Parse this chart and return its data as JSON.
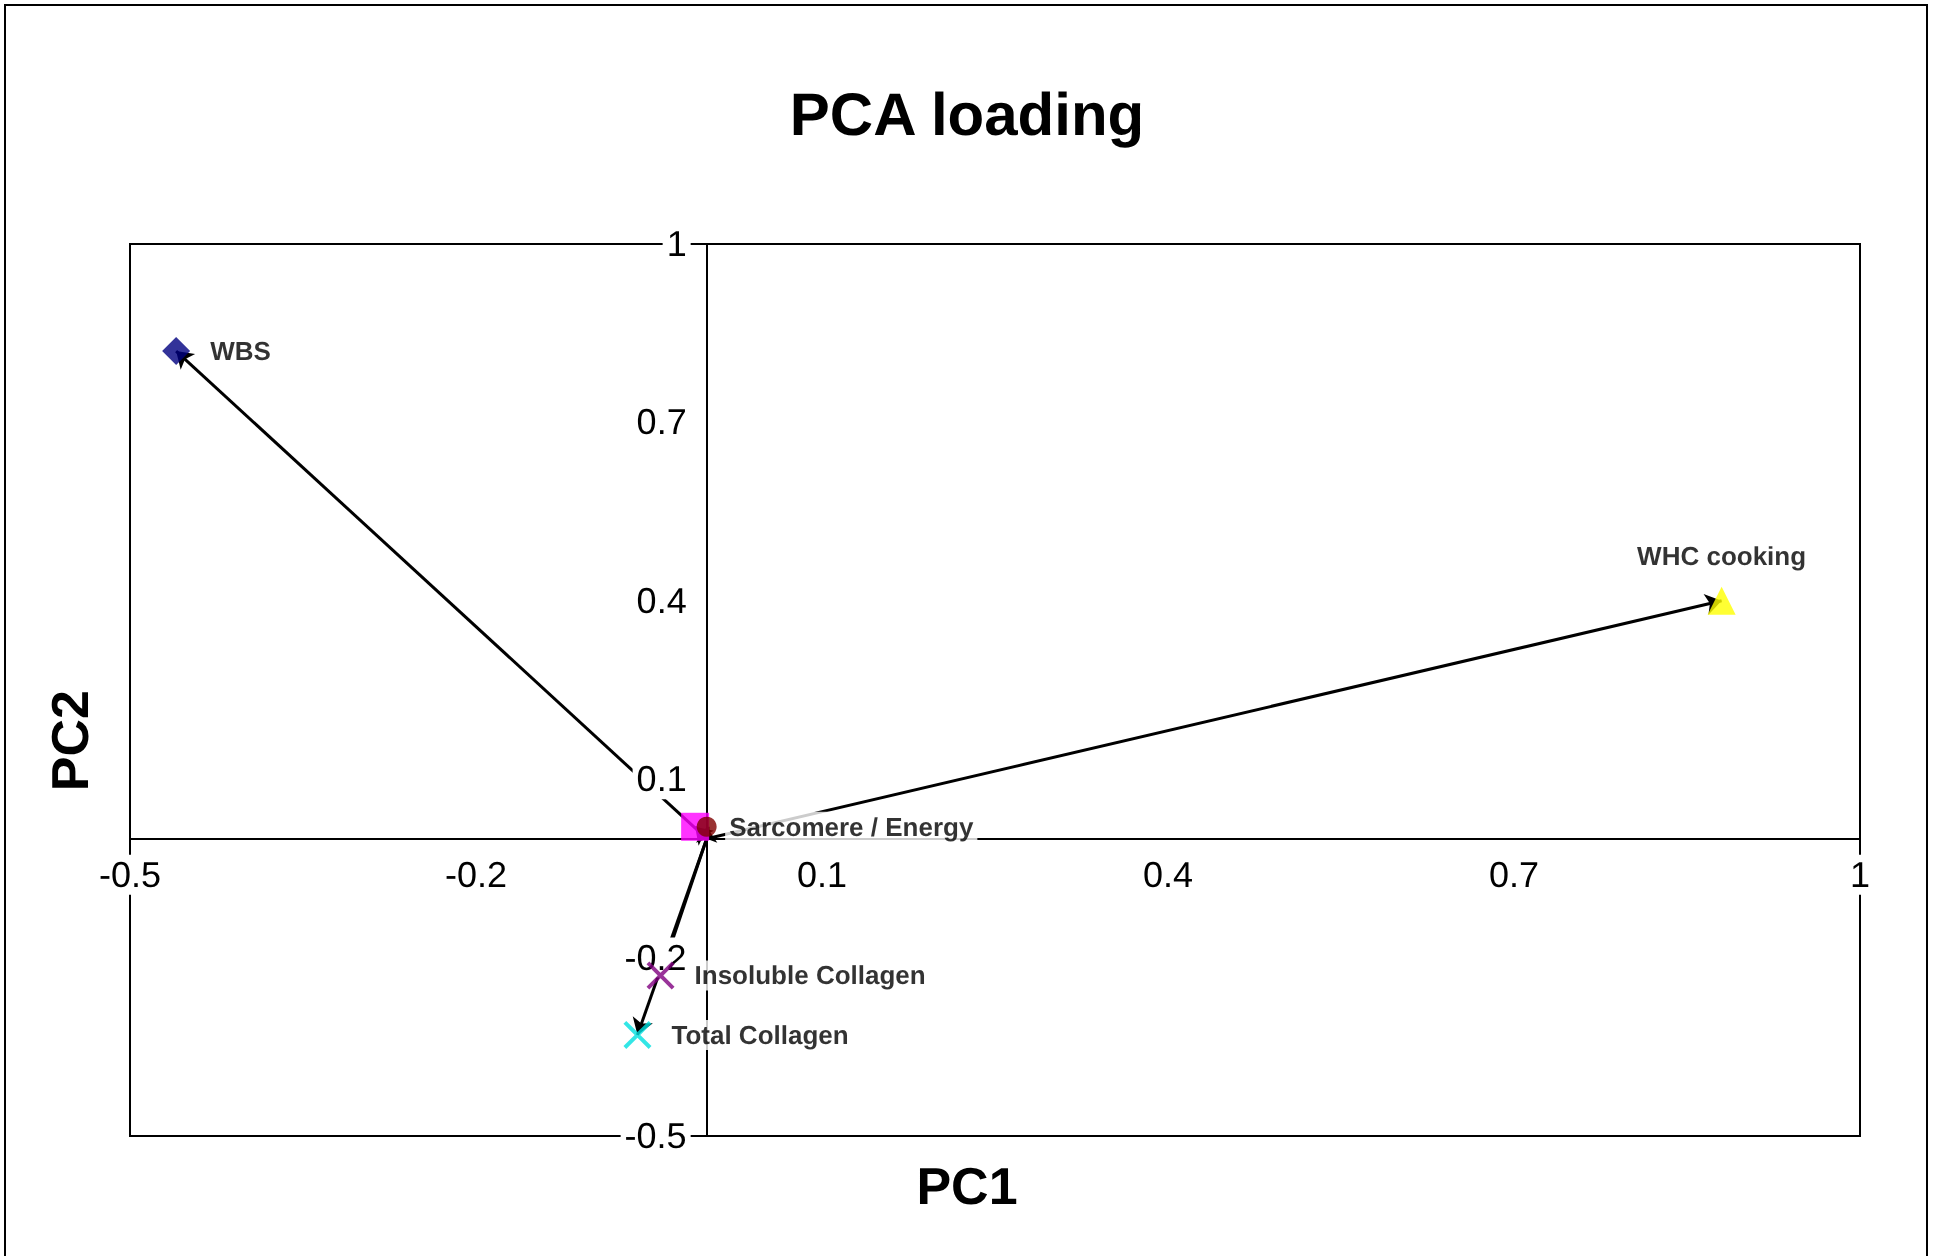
{
  "chart_data": {
    "type": "scatter",
    "title": "PCA loading",
    "xlabel": "PC1",
    "ylabel": "PC2",
    "xlim": [
      -0.5,
      1
    ],
    "xticks": [
      -0.5,
      -0.2,
      0.1,
      0.4,
      0.7,
      1
    ],
    "ylim": [
      -0.5,
      1
    ],
    "yticks": [
      -0.5,
      -0.2,
      0.1,
      0.4,
      0.7,
      1
    ],
    "series": [
      {
        "name": "WBS",
        "color": "#000080",
        "marker": "diamond",
        "x": [
          -0.46
        ],
        "values": [
          0.82
        ]
      },
      {
        "name": "WHC cooking",
        "color": "#ffff00",
        "marker": "triangle",
        "x": [
          0.88
        ],
        "values": [
          0.4
        ]
      },
      {
        "name": "Sarcomere / Energy",
        "color": "#ff00ff",
        "marker": "square",
        "x": [
          -0.01
        ],
        "values": [
          0.02
        ]
      },
      {
        "color": "#800000",
        "marker": "circle",
        "x": [
          0
        ],
        "values": [
          0.02
        ]
      },
      {
        "name": "Insoluble Collagen",
        "color": "#800080",
        "marker": "cross",
        "x": [
          -0.04
        ],
        "values": [
          -0.23
        ]
      },
      {
        "name": "Total Collagen",
        "color": "#00e0e0",
        "marker": "cross",
        "x": [
          -0.06
        ],
        "values": [
          -0.33
        ]
      }
    ]
  }
}
